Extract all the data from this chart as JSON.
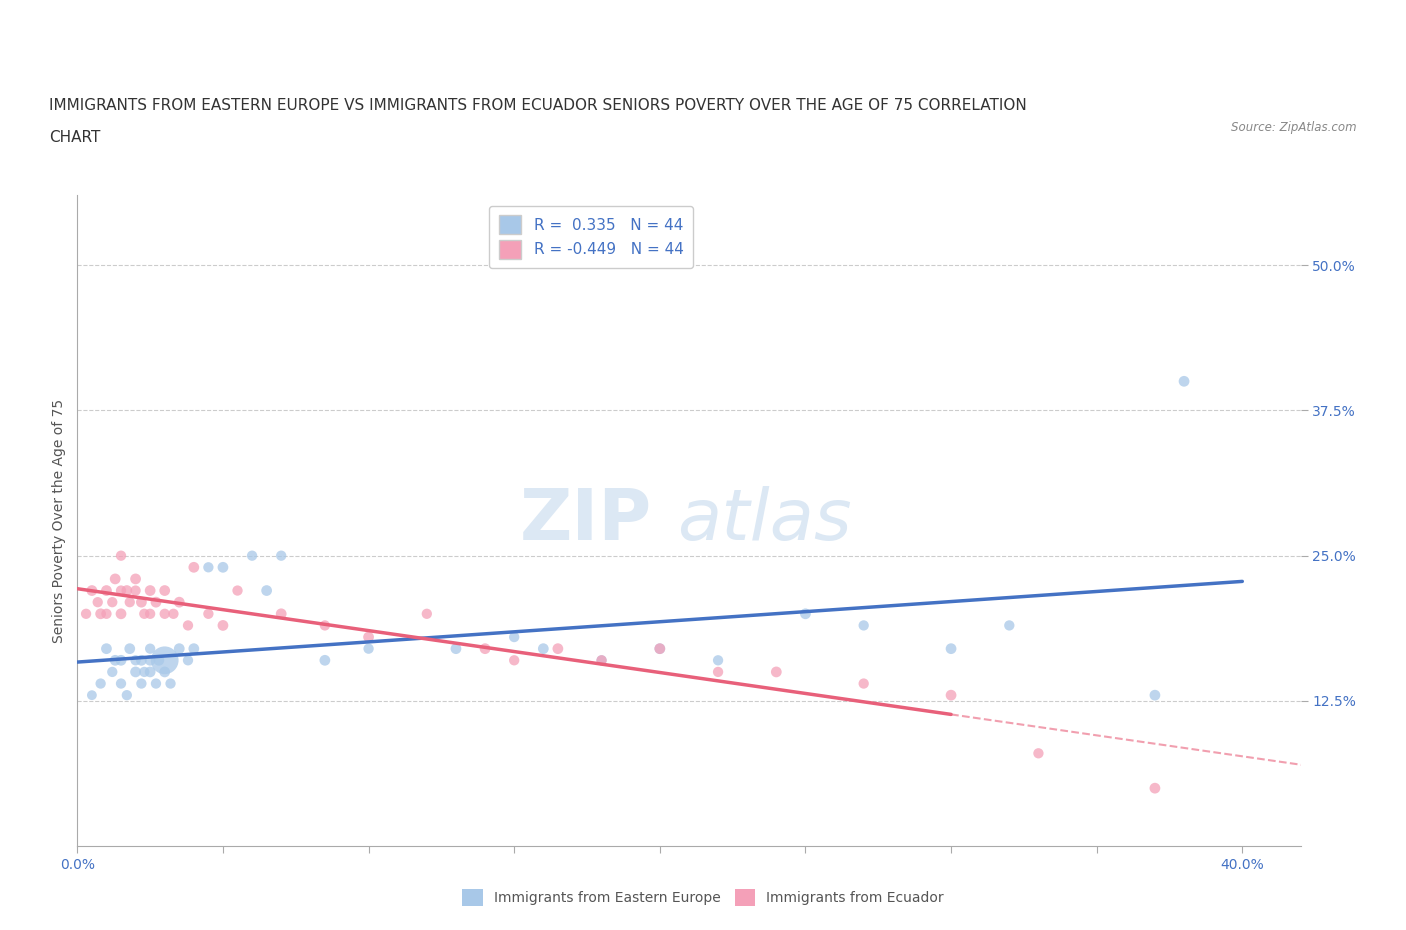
{
  "title_line1": "IMMIGRANTS FROM EASTERN EUROPE VS IMMIGRANTS FROM ECUADOR SENIORS POVERTY OVER THE AGE OF 75 CORRELATION",
  "title_line2": "CHART",
  "source": "Source: ZipAtlas.com",
  "ylabel": "Seniors Poverty Over the Age of 75",
  "xlim": [
    0.0,
    0.42
  ],
  "ylim": [
    0.0,
    0.56
  ],
  "xticks": [
    0.0,
    0.05,
    0.1,
    0.15,
    0.2,
    0.25,
    0.3,
    0.35,
    0.4
  ],
  "ytick_positions": [
    0.125,
    0.25,
    0.375,
    0.5
  ],
  "ytick_labels": [
    "12.5%",
    "25.0%",
    "37.5%",
    "50.0%"
  ],
  "blue_R": 0.335,
  "blue_N": 44,
  "pink_R": -0.449,
  "pink_N": 44,
  "blue_color": "#a8c8e8",
  "pink_color": "#f4a0b8",
  "blue_line_color": "#4472c4",
  "pink_line_color": "#e8607a",
  "watermark_color": "#dce8f4",
  "blue_scatter_x": [
    0.005,
    0.008,
    0.01,
    0.012,
    0.013,
    0.015,
    0.015,
    0.017,
    0.018,
    0.02,
    0.02,
    0.022,
    0.022,
    0.023,
    0.025,
    0.025,
    0.025,
    0.027,
    0.028,
    0.03,
    0.03,
    0.032,
    0.035,
    0.038,
    0.04,
    0.045,
    0.05,
    0.06,
    0.065,
    0.07,
    0.085,
    0.1,
    0.13,
    0.15,
    0.16,
    0.18,
    0.2,
    0.22,
    0.25,
    0.27,
    0.3,
    0.32,
    0.37,
    0.38
  ],
  "blue_scatter_y": [
    0.13,
    0.14,
    0.17,
    0.15,
    0.16,
    0.14,
    0.16,
    0.13,
    0.17,
    0.16,
    0.15,
    0.14,
    0.16,
    0.15,
    0.16,
    0.17,
    0.15,
    0.14,
    0.16,
    0.15,
    0.16,
    0.14,
    0.17,
    0.16,
    0.17,
    0.24,
    0.24,
    0.25,
    0.22,
    0.25,
    0.16,
    0.17,
    0.17,
    0.18,
    0.17,
    0.16,
    0.17,
    0.16,
    0.2,
    0.19,
    0.17,
    0.19,
    0.13,
    0.4
  ],
  "blue_scatter_sizes": [
    50,
    55,
    60,
    55,
    60,
    55,
    60,
    55,
    60,
    55,
    60,
    55,
    60,
    55,
    60,
    55,
    60,
    55,
    60,
    60,
    400,
    55,
    60,
    55,
    60,
    55,
    60,
    55,
    60,
    55,
    60,
    55,
    60,
    55,
    60,
    55,
    60,
    55,
    60,
    55,
    60,
    55,
    60,
    60
  ],
  "pink_scatter_x": [
    0.003,
    0.005,
    0.007,
    0.008,
    0.01,
    0.01,
    0.012,
    0.013,
    0.015,
    0.015,
    0.015,
    0.017,
    0.018,
    0.02,
    0.02,
    0.022,
    0.023,
    0.025,
    0.025,
    0.027,
    0.03,
    0.03,
    0.033,
    0.035,
    0.038,
    0.04,
    0.045,
    0.05,
    0.055,
    0.07,
    0.085,
    0.1,
    0.12,
    0.14,
    0.15,
    0.165,
    0.18,
    0.2,
    0.22,
    0.24,
    0.27,
    0.3,
    0.33,
    0.37
  ],
  "pink_scatter_y": [
    0.2,
    0.22,
    0.21,
    0.2,
    0.2,
    0.22,
    0.21,
    0.23,
    0.22,
    0.2,
    0.25,
    0.22,
    0.21,
    0.23,
    0.22,
    0.21,
    0.2,
    0.22,
    0.2,
    0.21,
    0.2,
    0.22,
    0.2,
    0.21,
    0.19,
    0.24,
    0.2,
    0.19,
    0.22,
    0.2,
    0.19,
    0.18,
    0.2,
    0.17,
    0.16,
    0.17,
    0.16,
    0.17,
    0.15,
    0.15,
    0.14,
    0.13,
    0.08,
    0.05
  ],
  "pink_scatter_sizes": [
    55,
    60,
    55,
    60,
    55,
    60,
    55,
    60,
    55,
    60,
    55,
    60,
    55,
    60,
    55,
    60,
    55,
    60,
    55,
    60,
    55,
    60,
    55,
    60,
    55,
    60,
    55,
    60,
    55,
    60,
    55,
    60,
    55,
    60,
    55,
    60,
    55,
    60,
    55,
    60,
    55,
    60,
    55,
    60
  ],
  "grid_color": "#cccccc",
  "background_color": "#ffffff",
  "title_fontsize": 11,
  "axis_label_fontsize": 10,
  "tick_fontsize": 10,
  "legend_fontsize": 11
}
